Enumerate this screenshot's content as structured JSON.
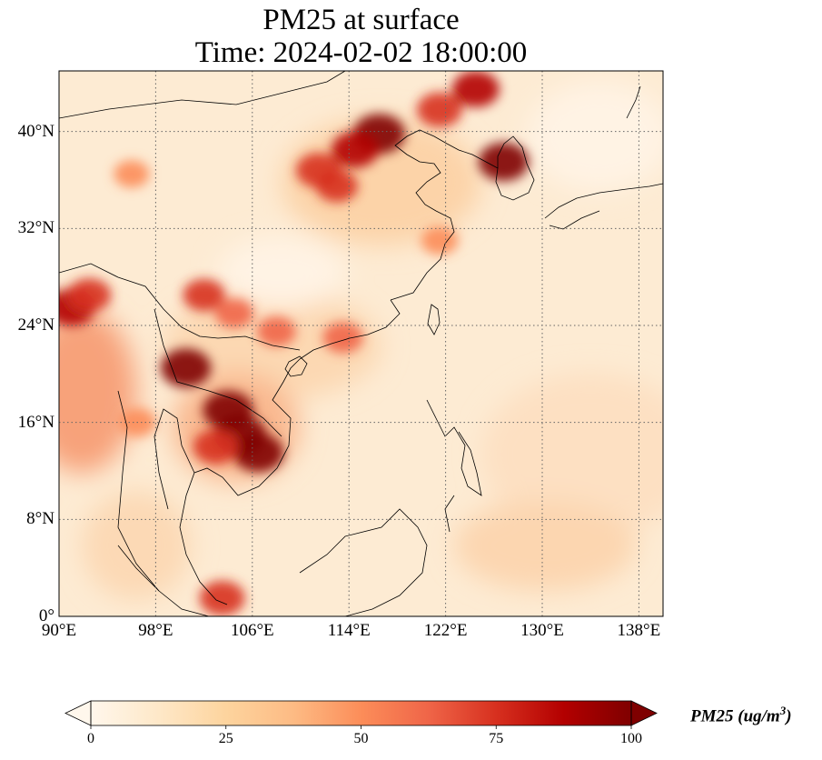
{
  "title_line1": "PM25 at surface",
  "title_line2": "Time: 2024-02-02 18:00:00",
  "map": {
    "lon_range": [
      90,
      140
    ],
    "lat_range": [
      0,
      45
    ],
    "lat_ticks": [
      {
        "value": 40,
        "label": "40°N"
      },
      {
        "value": 32,
        "label": "32°N"
      },
      {
        "value": 24,
        "label": "24°N"
      },
      {
        "value": 16,
        "label": "16°N"
      },
      {
        "value": 8,
        "label": "8°N"
      },
      {
        "value": 0,
        "label": "0°"
      }
    ],
    "lon_ticks": [
      {
        "value": 90,
        "label": "90°E"
      },
      {
        "value": 98,
        "label": "98°E"
      },
      {
        "value": 106,
        "label": "106°E"
      },
      {
        "value": 114,
        "label": "114°E"
      },
      {
        "value": 122,
        "label": "122°E"
      },
      {
        "value": 130,
        "label": "130°E"
      },
      {
        "value": 138,
        "label": "138°E"
      }
    ],
    "gridlines": "dotted"
  },
  "colorbar": {
    "colormap": "OrRd",
    "min": 0,
    "max": 100,
    "extend": "both",
    "ticks": [
      "0",
      "25",
      "50",
      "75",
      "100"
    ],
    "label_main": "PM25 (ug/m",
    "label_sup": "3",
    "label_close": ")",
    "stops": [
      "#fff7ec",
      "#fee8c8",
      "#fdd49e",
      "#fdbb84",
      "#fc8d59",
      "#ef6548",
      "#d7301f",
      "#b30000",
      "#7f0000"
    ]
  },
  "hotspots": [
    {
      "lon": 116.5,
      "lat": 39.8,
      "value": 100
    },
    {
      "lon": 114.5,
      "lat": 38.5,
      "value": 85
    },
    {
      "lon": 111.5,
      "lat": 36.8,
      "value": 80
    },
    {
      "lon": 113.0,
      "lat": 35.5,
      "value": 70
    },
    {
      "lon": 121.5,
      "lat": 41.8,
      "value": 80
    },
    {
      "lon": 124.5,
      "lat": 43.5,
      "value": 85
    },
    {
      "lon": 126.8,
      "lat": 37.5,
      "value": 95
    },
    {
      "lon": 105.0,
      "lat": 15.0,
      "value": 100
    },
    {
      "lon": 104.0,
      "lat": 17.0,
      "value": 95
    },
    {
      "lon": 106.5,
      "lat": 13.5,
      "value": 95
    },
    {
      "lon": 103.0,
      "lat": 14.0,
      "value": 80
    },
    {
      "lon": 100.5,
      "lat": 20.5,
      "value": 95
    },
    {
      "lon": 91.0,
      "lat": 25.5,
      "value": 90
    },
    {
      "lon": 92.5,
      "lat": 26.5,
      "value": 75
    },
    {
      "lon": 102.0,
      "lat": 26.5,
      "value": 70
    },
    {
      "lon": 104.5,
      "lat": 25.0,
      "value": 60
    },
    {
      "lon": 108.0,
      "lat": 23.5,
      "value": 60
    },
    {
      "lon": 113.5,
      "lat": 23.0,
      "value": 65
    },
    {
      "lon": 96.5,
      "lat": 16.0,
      "value": 55
    },
    {
      "lon": 103.5,
      "lat": 1.5,
      "value": 80
    },
    {
      "lon": 96.0,
      "lat": 36.5,
      "value": 50
    },
    {
      "lon": 121.5,
      "lat": 31.0,
      "value": 55
    }
  ]
}
